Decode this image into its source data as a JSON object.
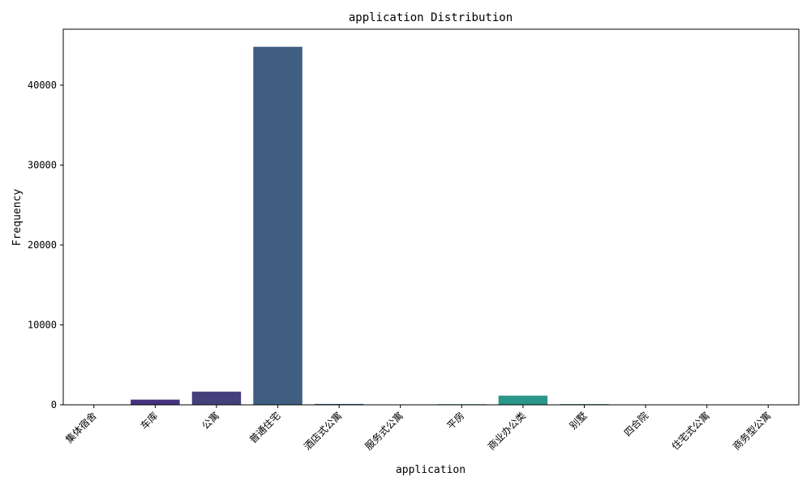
{
  "chart_data": {
    "type": "bar",
    "title": "application Distribution",
    "xlabel": "application",
    "ylabel": "Frequency",
    "categories": [
      "集体宿舍",
      "车库",
      "公寓",
      "普通住宅",
      "酒店式公寓",
      "服务式公寓",
      "平房",
      "商业办公类",
      "别墅",
      "四合院",
      "住宅式公寓",
      "商务型公寓"
    ],
    "values": [
      5,
      650,
      1650,
      44800,
      110,
      10,
      75,
      1150,
      95,
      20,
      5,
      5
    ],
    "colors": [
      "#481b6d",
      "#46327e",
      "#453f7c",
      "#3f5e80",
      "#2b6f8e",
      "#277e8e",
      "#23898e",
      "#2b968a",
      "#36a685",
      "#50b77a",
      "#6ece58",
      "#85d54a"
    ],
    "ylim": [
      0,
      47000
    ],
    "yticks": [
      0,
      10000,
      20000,
      30000,
      40000
    ],
    "ytick_labels": [
      "0",
      "10000",
      "20000",
      "30000",
      "40000"
    ],
    "grid": false,
    "legend": "none"
  }
}
